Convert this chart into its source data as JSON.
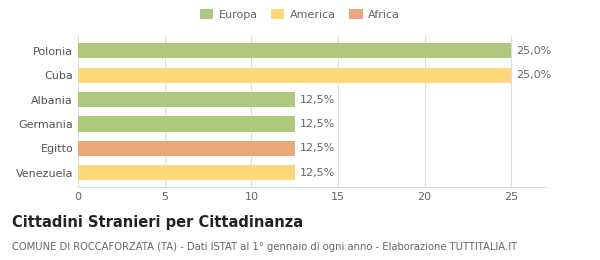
{
  "categories": [
    "Polonia",
    "Cuba",
    "Albania",
    "Germania",
    "Egitto",
    "Venezuela"
  ],
  "values": [
    25.0,
    25.0,
    12.5,
    12.5,
    12.5,
    12.5
  ],
  "bar_colors": [
    "#adc97e",
    "#fdd87a",
    "#adc97e",
    "#adc97e",
    "#e8a87c",
    "#fdd87a"
  ],
  "bar_labels": [
    "25,0%",
    "25,0%",
    "12,5%",
    "12,5%",
    "12,5%",
    "12,5%"
  ],
  "legend": [
    {
      "label": "Europa",
      "color": "#adc97e"
    },
    {
      "label": "America",
      "color": "#fdd87a"
    },
    {
      "label": "Africa",
      "color": "#e8a87c"
    }
  ],
  "xlim": [
    0,
    27
  ],
  "xticks": [
    0,
    5,
    10,
    15,
    20,
    25
  ],
  "title": "Cittadini Stranieri per Cittadinanza",
  "subtitle": "COMUNE DI ROCCAFORZATA (TA) - Dati ISTAT al 1° gennaio di ogni anno - Elaborazione TUTTITALIA.IT",
  "background_color": "#ffffff",
  "grid_color": "#dddddd",
  "bar_edge_color": "none",
  "label_fontsize": 8.0,
  "tick_fontsize": 8.0,
  "title_fontsize": 10.5,
  "subtitle_fontsize": 7.2
}
